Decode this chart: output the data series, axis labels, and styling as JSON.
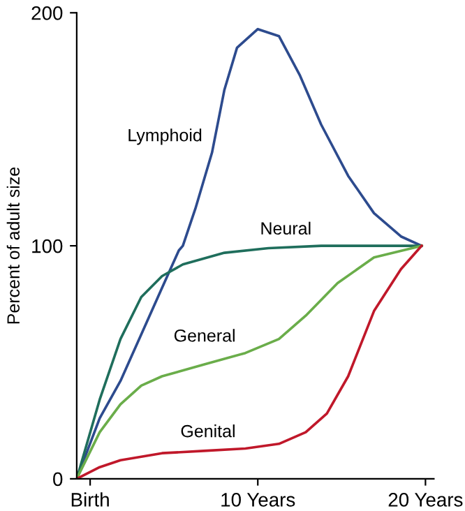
{
  "chart_data": {
    "type": "line",
    "ylabel": "Percent of adult size",
    "xlim": [
      -0.8,
      20.5
    ],
    "xticks": [
      {
        "value": 0,
        "label": "Birth"
      },
      {
        "value": 10,
        "label": "10 Years"
      },
      {
        "value": 20,
        "label": "20 Years"
      }
    ],
    "ylim": [
      0,
      200
    ],
    "yticks": [
      0,
      100,
      200
    ],
    "grid": false,
    "legend": false,
    "marker": "none",
    "line_style": "solid",
    "series": [
      {
        "color": "#2d4b8e",
        "x": [
          -0.8,
          0.57,
          1.81,
          3.05,
          4.29,
          5.29,
          5.53,
          6.28,
          7.27,
          8.01,
          8.76,
          10,
          11.26,
          12.52,
          13.78,
          15.39,
          16.93,
          18.54,
          19.77
        ],
        "values": [
          0,
          26,
          42,
          62,
          82,
          98,
          100,
          116,
          140,
          167,
          185,
          193,
          190,
          173,
          152,
          130,
          114,
          104,
          100
        ]
      },
      {
        "color": "#1f6e5c",
        "x": [
          -0.8,
          0.57,
          1.81,
          3.05,
          4.29,
          5.53,
          8.01,
          10.63,
          13.78,
          16.93,
          19.77
        ],
        "values": [
          0,
          34,
          60,
          78,
          87,
          92,
          97,
          99,
          100,
          100,
          100
        ]
      },
      {
        "color": "#6aad4a",
        "x": [
          -0.8,
          0.57,
          1.81,
          3.05,
          4.29,
          6.77,
          9.26,
          11.26,
          12.86,
          14.76,
          16.93,
          19.77
        ],
        "values": [
          0,
          20,
          32,
          40,
          44,
          49,
          54,
          60,
          70,
          84,
          95,
          100
        ]
      },
      {
        "color": "#c0182a",
        "x": [
          -0.8,
          0.57,
          1.81,
          4.29,
          6.77,
          9.26,
          11.26,
          12.86,
          14.12,
          15.39,
          16.93,
          18.54,
          19.77
        ],
        "values": [
          0,
          5,
          8,
          11,
          12,
          13,
          15,
          20,
          28,
          44,
          72,
          90,
          100
        ]
      }
    ],
    "annotations": [
      {
        "text": "Lymphoid",
        "x": 7.27,
        "y": 140
      },
      {
        "text": "Neural",
        "x": 13.78,
        "y": 100
      },
      {
        "text": "General",
        "x": 9.26,
        "y": 54
      },
      {
        "text": "Genital",
        "x": 9.26,
        "y": 13
      }
    ]
  }
}
